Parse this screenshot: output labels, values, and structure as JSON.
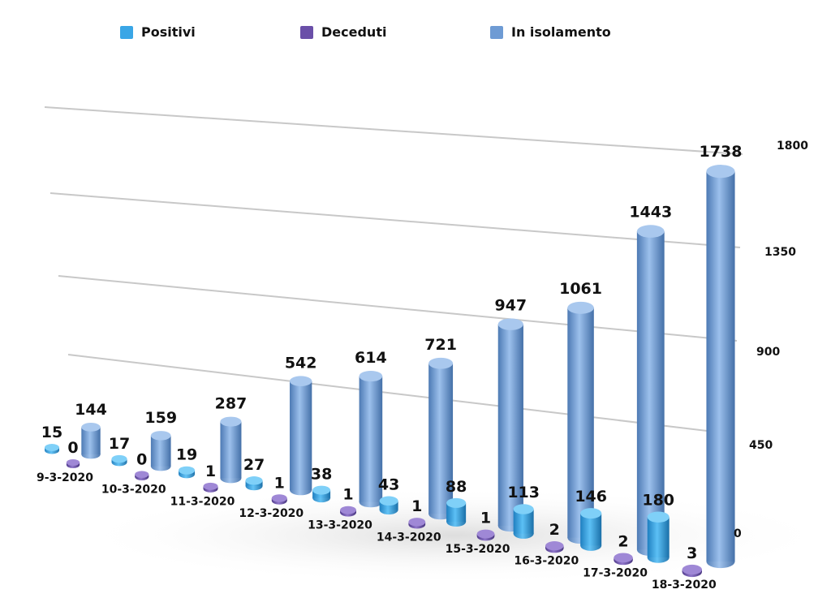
{
  "chart_data": {
    "type": "bar",
    "title": "",
    "categories": [
      "9-3-2020",
      "10-3-2020",
      "11-3-2020",
      "12-3-2020",
      "13-3-2020",
      "14-3-2020",
      "15-3-2020",
      "16-3-2020",
      "17-3-2020",
      "18-3-2020"
    ],
    "series": [
      {
        "name": "Positivi",
        "color": "#3aa6e6",
        "values": [
          15,
          17,
          19,
          27,
          38,
          43,
          88,
          113,
          146,
          180
        ]
      },
      {
        "name": "Deceduti",
        "color": "#6a4fa8",
        "values": [
          0,
          0,
          1,
          1,
          1,
          1,
          1,
          2,
          2,
          3
        ]
      },
      {
        "name": "In isolamento",
        "color": "#6e9bd4",
        "values": [
          144,
          159,
          287,
          542,
          614,
          721,
          947,
          1061,
          1443,
          1738
        ]
      }
    ],
    "ylim": [
      0,
      1800
    ],
    "yticks": [
      "0",
      "450",
      "900",
      "1350",
      "1800"
    ],
    "legend_position": "top",
    "grid": true,
    "style": "3d-cylinder"
  }
}
